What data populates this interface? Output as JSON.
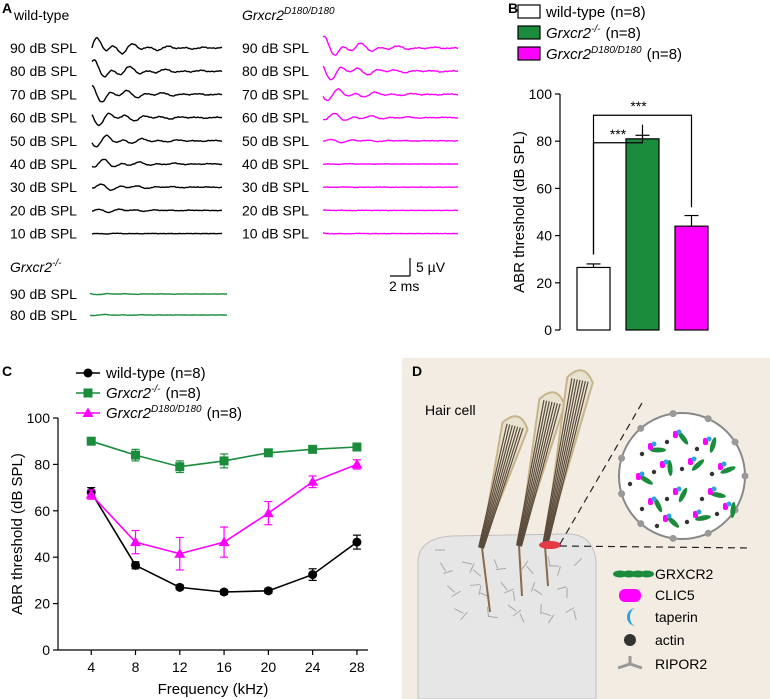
{
  "panel_labels": {
    "a": "A",
    "b": "B",
    "c": "C",
    "d": "D"
  },
  "colors": {
    "wildtype": "#000000",
    "knockout": "#1a8c3c",
    "d180": "#ff00ff",
    "cell": "#e6e6e6",
    "stereocilia": "#e8e2d0",
    "cilia_border": "#c8b48a",
    "actin_line": "#5a4a3a",
    "ring": "#e63946",
    "bg_d": "#f3ece3"
  },
  "panel_a": {
    "wt_title": "wild-type",
    "mut_title_base": "Grxcr2",
    "mut_title_sup": "D180/D180",
    "ko_title_base": "Grxcr2",
    "ko_title_sup": "-/-",
    "wt_levels": [
      "90 dB SPL",
      "80 dB SPL",
      "70 dB SPL",
      "60 dB SPL",
      "50 dB SPL",
      "40 dB SPL",
      "30 dB SPL",
      "20 dB SPL",
      "10 dB SPL"
    ],
    "mut_levels": [
      "90 dB SPL",
      "80 dB SPL",
      "70 dB SPL",
      "60 dB SPL",
      "50 dB SPL",
      "40 dB SPL",
      "30 dB SPL",
      "20 dB SPL",
      "10 dB SPL"
    ],
    "ko_levels": [
      "90 dB SPL",
      "80 dB SPL"
    ],
    "wt_amplitude": [
      1.0,
      0.92,
      0.82,
      0.72,
      0.62,
      0.5,
      0.38,
      0.24,
      0.05
    ],
    "mut_amplitude": [
      0.95,
      0.8,
      0.62,
      0.45,
      0.22,
      0.05,
      0.04,
      0.04,
      0.04
    ],
    "ko_amplitude": [
      0.06,
      0.06
    ],
    "scale_v": "5 µV",
    "scale_t": "2 ms"
  },
  "panel_b": {
    "ylabel": "ABR threshold (dB SPL)",
    "legend": [
      {
        "base": "wild-type",
        "sup": "",
        "n": "(n=8)",
        "italic": false
      },
      {
        "base": "Grxcr2",
        "sup": "-/-",
        "n": "(n=8)",
        "italic": true
      },
      {
        "base": "Grxcr2",
        "sup": "D180/D180",
        "n": "(n=8)",
        "italic": true
      }
    ],
    "significance": [
      "***",
      "***"
    ]
  },
  "panel_c": {
    "legend": [
      {
        "base": "wild-type",
        "sup": "",
        "n": "(n=8)",
        "italic": false
      },
      {
        "base": "Grxcr2",
        "sup": "-/-",
        "n": "(n=8)",
        "italic": true
      },
      {
        "base": "Grxcr2",
        "sup": "D180/D180",
        "n": "(n=8)",
        "italic": true
      }
    ]
  },
  "panel_d": {
    "cell_label": "Hair cell",
    "legend": [
      "GRXCR2",
      "CLIC5",
      "taperin",
      "actin",
      "RIPOR2"
    ]
  },
  "chart_data": [
    {
      "type": "bar",
      "id": "panel_b",
      "title": "",
      "xlabel": "",
      "ylabel": "ABR threshold (dB SPL)",
      "categories": [
        "wild-type",
        "Grxcr2-/-",
        "Grxcr2 D180/D180"
      ],
      "values": [
        26.5,
        81,
        44
      ],
      "errors": [
        1.5,
        1.5,
        4.5
      ],
      "ylim": [
        0,
        100
      ],
      "yticks": [
        0,
        20,
        40,
        60,
        80,
        100
      ],
      "legend_position": "top-left"
    },
    {
      "type": "line",
      "id": "panel_c",
      "title": "",
      "xlabel": "Frequency (kHz)",
      "ylabel": "ABR threshold (dB SPL)",
      "x": [
        4,
        8,
        12,
        16,
        20,
        24,
        28
      ],
      "xlim": [
        1,
        29
      ],
      "ylim": [
        0,
        100
      ],
      "yticks": [
        0,
        20,
        40,
        60,
        80,
        100
      ],
      "series": [
        {
          "name": "wild-type",
          "values": [
            68,
            36.5,
            27,
            25,
            25.5,
            32.5,
            46.5
          ],
          "errors": [
            2,
            1.5,
            1,
            1,
            1,
            2.5,
            3
          ],
          "marker": "circle"
        },
        {
          "name": "Grxcr2-/-",
          "values": [
            90,
            84,
            79,
            81.5,
            85,
            86.5,
            87.5
          ],
          "errors": [
            1,
            2.5,
            2.5,
            3,
            1.5,
            1.5,
            1
          ],
          "marker": "square"
        },
        {
          "name": "Grxcr2 D180/D180",
          "values": [
            67,
            46.5,
            41.5,
            46.5,
            59,
            72.5,
            80
          ],
          "errors": [
            2,
            5,
            7,
            6.5,
            5,
            2.5,
            2
          ],
          "marker": "triangle"
        }
      ],
      "legend_position": "top-left"
    }
  ]
}
